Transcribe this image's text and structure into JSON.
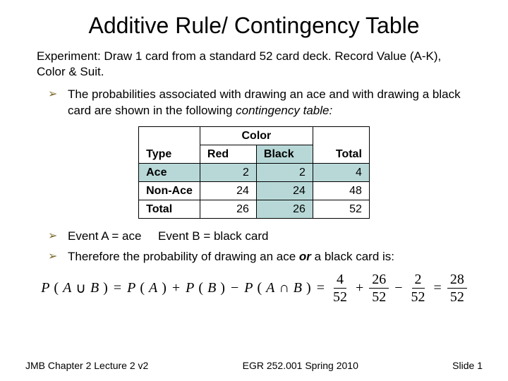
{
  "title": "Additive Rule/ Contingency Table",
  "experiment": "Experiment:   Draw 1 card from a standard 52 card deck.  Record Value (A-K), Color & Suit.",
  "bullet1_a": "The probabilities associated with drawing an ace and with drawing a black card are shown in the following ",
  "bullet1_b": "contingency table:",
  "table": {
    "h_type": "Type",
    "h_color": "Color",
    "h_red": "Red",
    "h_black": "Black",
    "h_total": "Total",
    "r_ace": "Ace",
    "r_nonace": "Non-Ace",
    "r_total": "Total",
    "cells": {
      "ace_red": "2",
      "ace_black": "2",
      "ace_total": "4",
      "non_red": "24",
      "non_black": "24",
      "non_total": "48",
      "tot_red": "26",
      "tot_black": "26",
      "tot_total": "52"
    },
    "shade_color": "#b8d8d8"
  },
  "bullet2": "Event A = ace     Event B = black card",
  "bullet3_a": "Therefore the probability of drawing an ace ",
  "bullet3_b": "or",
  "bullet3_c": " a black card is:",
  "formula": {
    "p": "P",
    "A": "A",
    "B": "B",
    "union": "∪",
    "inter": "∩",
    "eq": "=",
    "plus": "+",
    "minus": "−",
    "f1n": "4",
    "f1d": "52",
    "f2n": "26",
    "f2d": "52",
    "f3n": "2",
    "f3d": "52",
    "f4n": "28",
    "f4d": "52"
  },
  "footer": {
    "left": "JMB Chapter 2 Lecture 2 v2",
    "center": "EGR 252.001 Spring 2010",
    "right": "Slide 1"
  }
}
